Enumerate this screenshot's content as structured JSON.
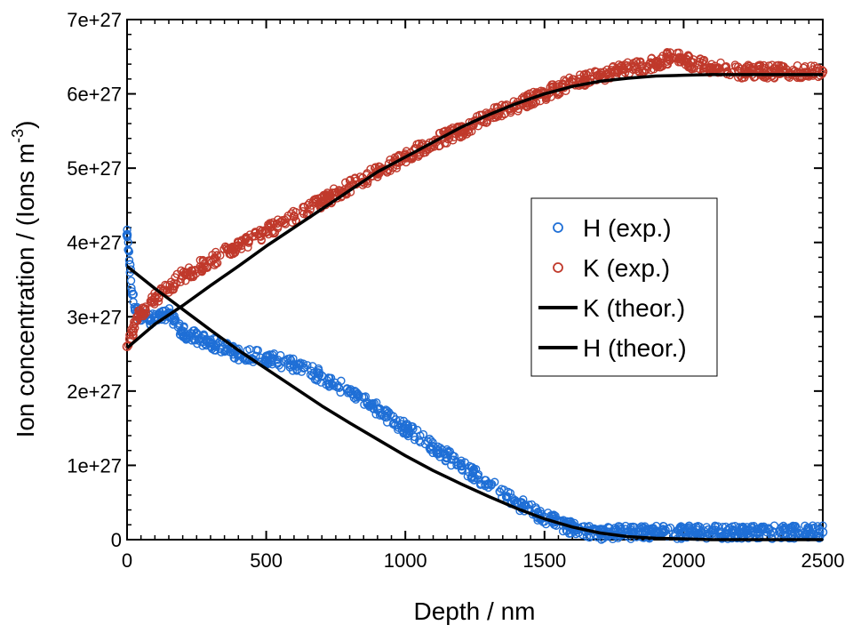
{
  "chart_data": {
    "type": "scatter",
    "title": "",
    "xlabel": "Depth / nm",
    "ylabel_main": "Ion concentration / (Ions m",
    "ylabel_sup": "-3",
    "ylabel_close": ")",
    "xlim": [
      0,
      2500
    ],
    "ylim": [
      0,
      7e+27
    ],
    "x_ticks": [
      0,
      500,
      1000,
      1500,
      2000,
      2500
    ],
    "x_tick_labels": [
      "0",
      "500",
      "1000",
      "1500",
      "2000",
      "2500"
    ],
    "y_ticks": [
      0,
      1e+27,
      2e+27,
      3e+27,
      4e+27,
      5e+27,
      6e+27,
      7e+27
    ],
    "y_tick_labels": [
      "0",
      "1e+27",
      "2e+27",
      "3e+27",
      "4e+27",
      "5e+27",
      "6e+27",
      "7e+27"
    ],
    "legend_position": "right-center",
    "series": [
      {
        "name": "H (exp.)",
        "kind": "markers",
        "color": "#1f6fd6",
        "x": [
          0,
          10,
          20,
          30,
          50,
          80,
          100,
          150,
          200,
          300,
          400,
          500,
          600,
          700,
          800,
          900,
          1000,
          1100,
          1200,
          1300,
          1400,
          1500,
          1600,
          1700,
          1800,
          1900,
          2000,
          2200,
          2400,
          2500
        ],
        "y": [
          4.1e+27,
          3.7e+27,
          3.3e+27,
          3.1e+27,
          3e+27,
          2.95e+27,
          3e+27,
          3.05e+27,
          2.8e+27,
          2.65e+27,
          2.5e+27,
          2.45e+27,
          2.35e+27,
          2.2e+27,
          2e+27,
          1.75e+27,
          1.5e+27,
          1.25e+27,
          1e+27,
          7.5e+26,
          5e+26,
          3e+26,
          1.5e+26,
          8e+25,
          1e+26,
          1e+26,
          1e+26,
          1e+26,
          1e+26,
          1e+26
        ]
      },
      {
        "name": "K (exp.)",
        "kind": "markers",
        "color": "#c0392b",
        "x": [
          0,
          10,
          20,
          40,
          60,
          100,
          200,
          300,
          400,
          500,
          600,
          700,
          800,
          900,
          1000,
          1100,
          1200,
          1300,
          1400,
          1500,
          1600,
          1700,
          1800,
          1900,
          1950,
          2000,
          2100,
          2200,
          2300,
          2400,
          2500
        ],
        "y": [
          2.6e+27,
          2.7e+27,
          2.8e+27,
          3e+27,
          3.1e+27,
          3.25e+27,
          3.55e+27,
          3.75e+27,
          3.95e+27,
          4.15e+27,
          4.35e+27,
          4.55e+27,
          4.75e+27,
          4.95e+27,
          5.15e+27,
          5.35e+27,
          5.5e+27,
          5.7e+27,
          5.85e+27,
          6e+27,
          6.15e+27,
          6.25e+27,
          6.35e+27,
          6.4e+27,
          6.5e+27,
          6.45e+27,
          6.35e+27,
          6.3e+27,
          6.3e+27,
          6.3e+27,
          6.3e+27
        ]
      },
      {
        "name": "K (theor.)",
        "kind": "line",
        "color": "#000000",
        "x": [
          0,
          100,
          200,
          300,
          400,
          500,
          600,
          700,
          800,
          900,
          1000,
          1100,
          1200,
          1300,
          1400,
          1500,
          1600,
          1700,
          1800,
          1900,
          2000,
          2100,
          2200,
          2300,
          2400,
          2500
        ],
        "y": [
          2.58e+27,
          2.9e+27,
          3.15e+27,
          3.42e+27,
          3.68e+27,
          3.95e+27,
          4.2e+27,
          4.45e+27,
          4.7e+27,
          4.95e+27,
          5.15e+27,
          5.35e+27,
          5.55e+27,
          5.72e+27,
          5.87e+27,
          6e+27,
          6.1e+27,
          6.17e+27,
          6.21e+27,
          6.24e+27,
          6.25e+27,
          6.26e+27,
          6.26e+27,
          6.26e+27,
          6.26e+27,
          6.26e+27
        ]
      },
      {
        "name": "H (theor.)",
        "kind": "line",
        "color": "#000000",
        "x": [
          0,
          100,
          200,
          300,
          400,
          500,
          600,
          700,
          800,
          900,
          1000,
          1100,
          1200,
          1300,
          1400,
          1500,
          1600,
          1700,
          1800,
          1900,
          2000,
          2100,
          2200,
          2300,
          2400,
          2500
        ],
        "y": [
          3.68e+27,
          3.38e+27,
          3.1e+27,
          2.82e+27,
          2.55e+27,
          2.3e+27,
          2.05e+27,
          1.8e+27,
          1.57e+27,
          1.35e+27,
          1.13e+27,
          9.3e+26,
          7.5e+26,
          5.8e+26,
          4.2e+26,
          2.8e+26,
          1.7e+26,
          9e+25,
          4e+25,
          2e+25,
          1e+25,
          0.0,
          0.0,
          0.0,
          0.0,
          0.0
        ]
      }
    ]
  }
}
